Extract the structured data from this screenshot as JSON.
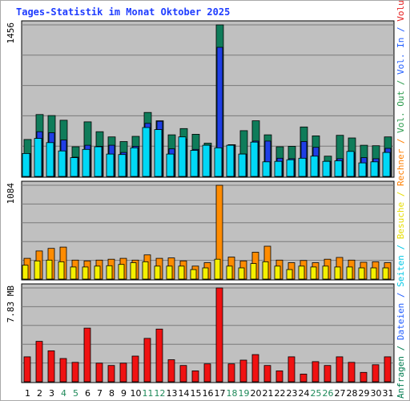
{
  "chart_data": {
    "type": "bar",
    "title": "Tages-Statistik im Monat Oktober 2025",
    "days": [
      "1",
      "2",
      "3",
      "4",
      "5",
      "6",
      "7",
      "8",
      "9",
      "10",
      "11",
      "12",
      "13",
      "14",
      "15",
      "16",
      "17",
      "18",
      "19",
      "20",
      "21",
      "22",
      "23",
      "24",
      "25",
      "26",
      "27",
      "28",
      "29",
      "30",
      "31"
    ],
    "weekend_days": [
      "4",
      "5",
      "11",
      "12",
      "18",
      "19",
      "25",
      "26"
    ],
    "right_label_parts": [
      {
        "text": "Anfragen",
        "color": "#007b4f"
      },
      {
        "text": " / ",
        "color": "#007b4f"
      },
      {
        "text": "Dateien",
        "color": "#1f5cff"
      },
      {
        "text": " / ",
        "color": "#1f5cff"
      },
      {
        "text": "Seiten",
        "color": "#00c8e6"
      },
      {
        "text": " / ",
        "color": "#00c8e6"
      },
      {
        "text": "Besuche",
        "color": "#e6dd00"
      },
      {
        "text": " / ",
        "color": "#e6dd00"
      },
      {
        "text": "Rechner",
        "color": "#ff7f00"
      },
      {
        "text": " / ",
        "color": "#ff7f00"
      },
      {
        "text": "Vol. Out",
        "color": "#2a9a4b"
      },
      {
        "text": " / ",
        "color": "#2a9a4b"
      },
      {
        "text": "Vol. In",
        "color": "#1f5cff"
      },
      {
        "text": " / ",
        "color": "#1f5cff"
      },
      {
        "text": "Volumen",
        "color": "#e61a1a"
      }
    ],
    "panels": [
      {
        "id": "requests",
        "max_label": "1456",
        "max": 1456,
        "series": [
          {
            "name": "Anfragen",
            "color": "#0f7c5a",
            "values": [
              355,
              595,
              585,
              540,
              285,
              525,
              430,
              380,
              335,
              385,
              615,
              535,
              400,
              460,
              405,
              320,
              1456,
              305,
              440,
              535,
              400,
              285,
              290,
              475,
              390,
              195,
              395,
              370,
              300,
              295,
              380
            ]
          },
          {
            "name": "Dateien",
            "color": "#1f3fe6",
            "values": [
              220,
              430,
              420,
              350,
              185,
              300,
              290,
              300,
              230,
              290,
              510,
              530,
              265,
              360,
              260,
              300,
              1240,
              300,
              215,
              340,
              340,
              175,
              170,
              335,
              280,
              145,
              170,
              230,
              180,
              170,
              270
            ]
          },
          {
            "name": "Seiten",
            "color": "#00d8f6",
            "values": [
              220,
              365,
              325,
              245,
              180,
              260,
              285,
              215,
              210,
              275,
              470,
              450,
              215,
              380,
              250,
              300,
              275,
              300,
              215,
              330,
              140,
              145,
              160,
              175,
              195,
              145,
              150,
              240,
              130,
              140,
              230
            ]
          }
        ]
      },
      {
        "id": "visits",
        "max_label": "1084",
        "max": 1084,
        "series": [
          {
            "name": "Rechner",
            "color": "#ff8c00",
            "values": [
              240,
              325,
              355,
              370,
              220,
              210,
              220,
              230,
              240,
              220,
              280,
              240,
              245,
              210,
              150,
              190,
              1084,
              255,
              210,
              310,
              380,
              220,
              190,
              215,
              190,
              230,
              250,
              220,
              195,
              200,
              190
            ]
          },
          {
            "name": "Besuche",
            "color": "#f5f000",
            "values": [
              160,
              210,
              220,
              200,
              140,
              140,
              150,
              155,
              170,
              190,
              200,
              150,
              150,
              150,
              110,
              130,
              230,
              150,
              130,
              180,
              200,
              150,
              110,
              150,
              140,
              150,
              140,
              140,
              130,
              130,
              130
            ]
          }
        ]
      },
      {
        "id": "volume",
        "max_label": "7.83 MB",
        "max": 7.83,
        "series": [
          {
            "name": "Volumen",
            "color": "#f01212",
            "values": [
              2.08,
              3.37,
              2.58,
              1.94,
              1.62,
              4.48,
              1.55,
              1.36,
              1.55,
              2.14,
              3.62,
              4.4,
              1.84,
              1.36,
              0.91,
              1.49,
              7.83,
              1.49,
              1.81,
              2.27,
              1.36,
              0.91,
              2.08,
              0.64,
              1.68,
              1.36,
              2.08,
              1.62,
              0.78,
              1.42,
              2.08
            ]
          }
        ]
      }
    ]
  }
}
